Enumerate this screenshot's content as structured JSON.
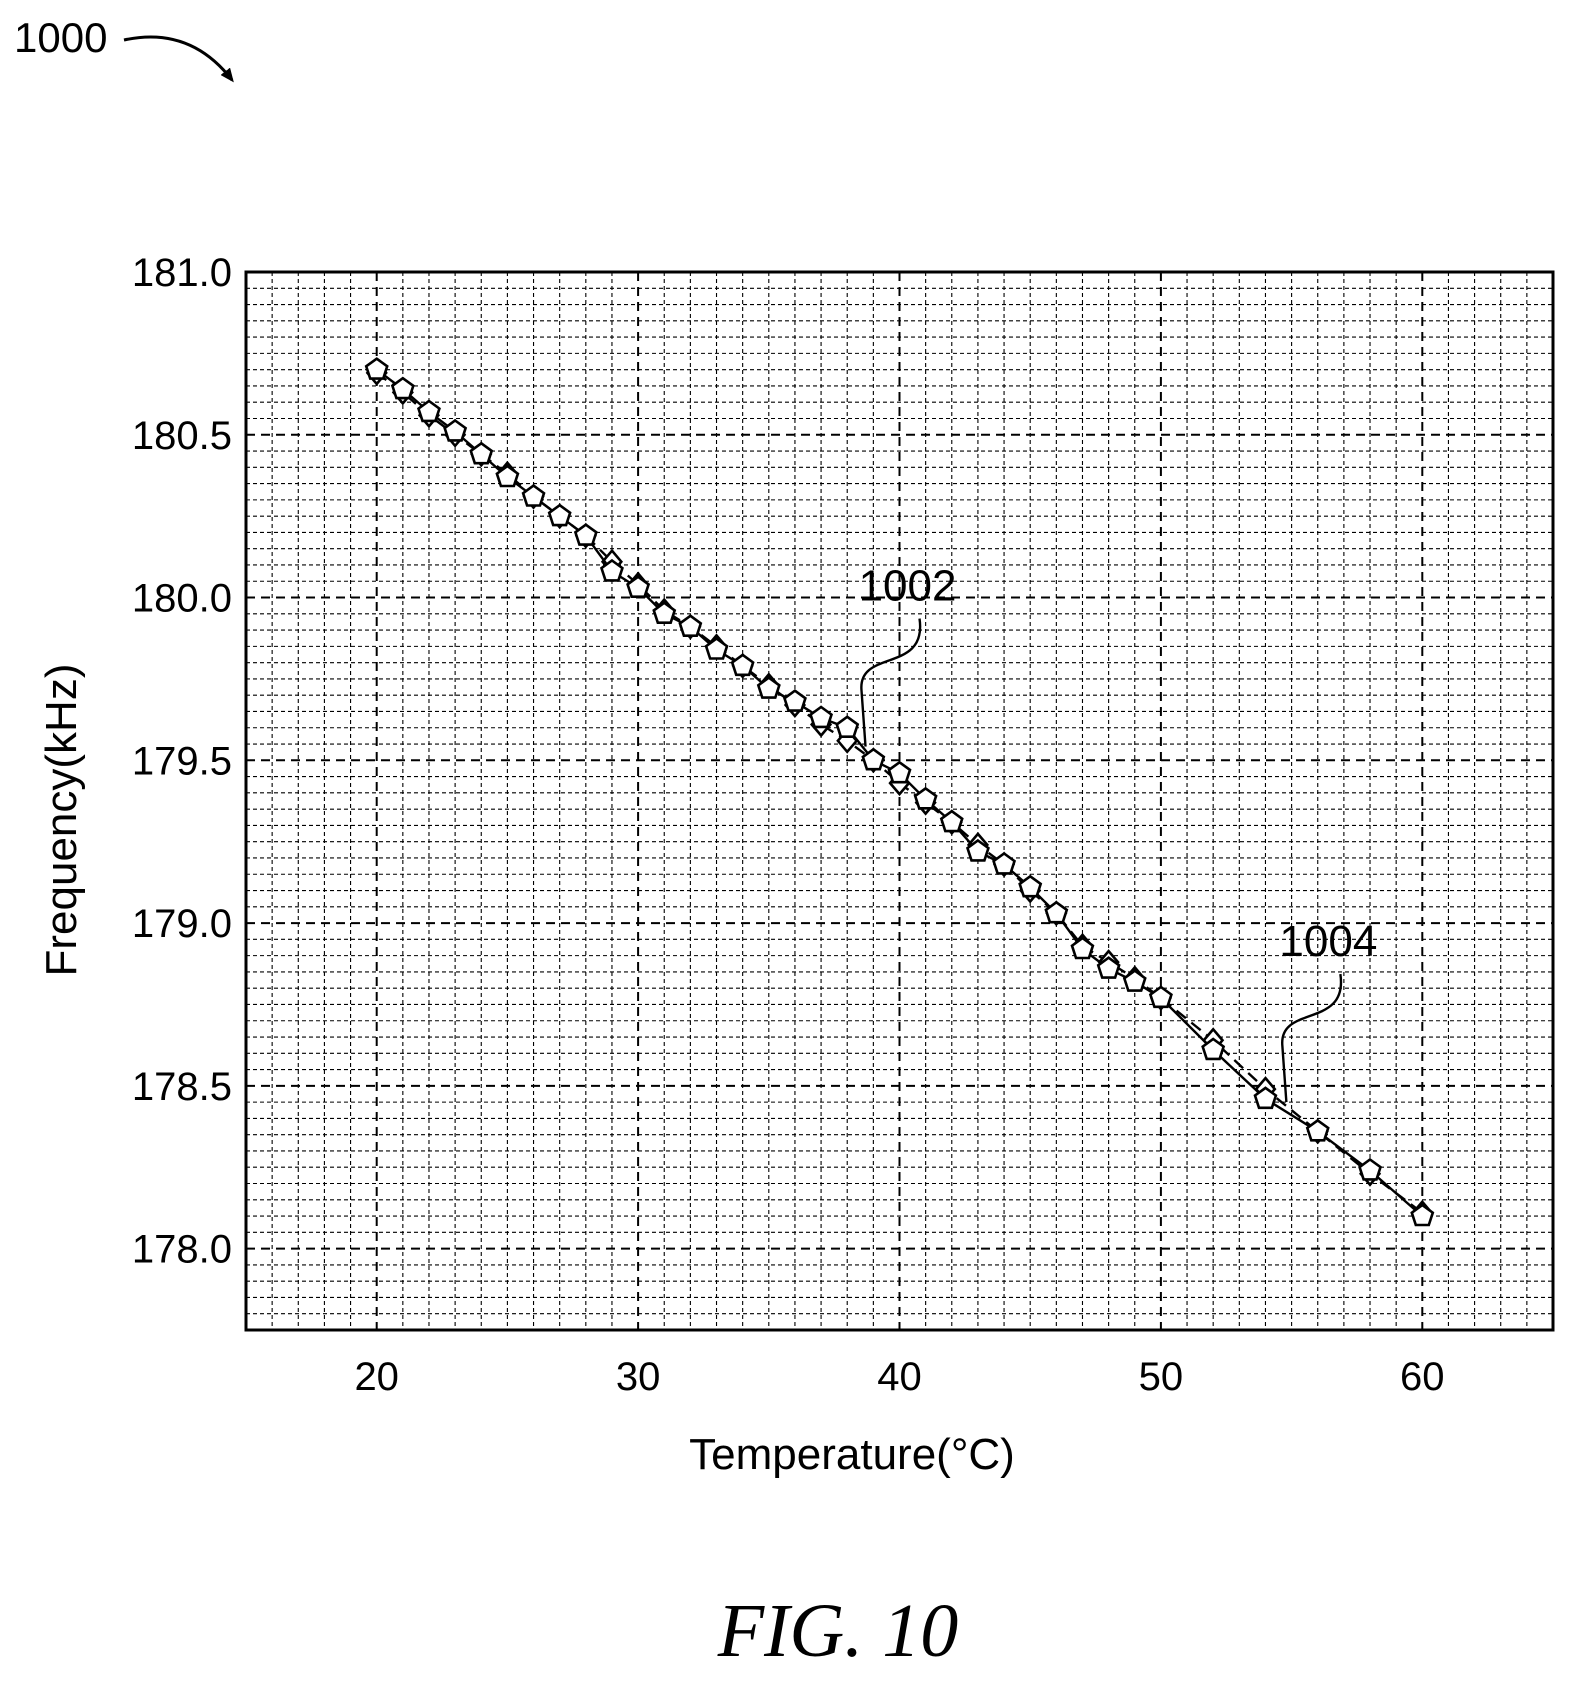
{
  "figure": {
    "ref_number": "1000",
    "caption": "FIG. 10"
  },
  "chart_data": {
    "type": "line",
    "title": "",
    "xlabel": "Temperature(°C)",
    "ylabel": "Frequency(kHz)",
    "xlim": [
      15,
      65
    ],
    "ylim": [
      177.75,
      181.0
    ],
    "xticks": [
      20,
      30,
      40,
      50,
      60
    ],
    "xtick_labels": [
      "20",
      "30",
      "40",
      "50",
      "60"
    ],
    "yticks": [
      178.0,
      178.5,
      179.0,
      179.5,
      180.0,
      180.5,
      181.0
    ],
    "ytick_labels": [
      "178.0",
      "178.5",
      "179.0",
      "179.5",
      "180.0",
      "180.5",
      "181.0"
    ],
    "grid": true,
    "series": [
      {
        "label": "1002",
        "style": "solid line with pentagon markers",
        "x": [
          20,
          21,
          22,
          23,
          24,
          25,
          26,
          27,
          28,
          29,
          30,
          31,
          32,
          33,
          34,
          35,
          36,
          37,
          38,
          39,
          40,
          41,
          42,
          43,
          44,
          45,
          46,
          47,
          48,
          49,
          50,
          52,
          54,
          56,
          58,
          60
        ],
        "y": [
          180.7,
          180.64,
          180.57,
          180.51,
          180.44,
          180.37,
          180.31,
          180.25,
          180.19,
          180.08,
          180.03,
          179.95,
          179.91,
          179.84,
          179.79,
          179.72,
          179.68,
          179.63,
          179.6,
          179.5,
          179.46,
          179.38,
          179.31,
          179.22,
          179.18,
          179.11,
          179.03,
          178.92,
          178.86,
          178.82,
          178.77,
          178.61,
          178.46,
          178.36,
          178.24,
          178.1
        ]
      },
      {
        "label": "1004",
        "style": "dashed line with diamond markers",
        "x": [
          20,
          21,
          22,
          23,
          24,
          25,
          26,
          27,
          28,
          29,
          30,
          31,
          32,
          33,
          34,
          35,
          36,
          37,
          38,
          39,
          40,
          41,
          42,
          43,
          44,
          45,
          46,
          47,
          48,
          49,
          50,
          52,
          54,
          56,
          58,
          60
        ],
        "y": [
          180.69,
          180.63,
          180.56,
          180.5,
          180.44,
          180.38,
          180.31,
          180.25,
          180.19,
          180.11,
          180.04,
          179.96,
          179.91,
          179.85,
          179.79,
          179.73,
          179.67,
          179.61,
          179.56,
          179.5,
          179.43,
          179.37,
          179.31,
          179.24,
          179.18,
          179.1,
          179.03,
          178.93,
          178.88,
          178.83,
          178.77,
          178.64,
          178.49,
          178.36,
          178.23,
          178.11
        ]
      }
    ],
    "annotations": [
      {
        "text": "1002",
        "points_to_series": 0,
        "at_x": 38.7
      },
      {
        "text": "1004",
        "points_to_series": 1,
        "at_x": 54.8
      }
    ]
  }
}
